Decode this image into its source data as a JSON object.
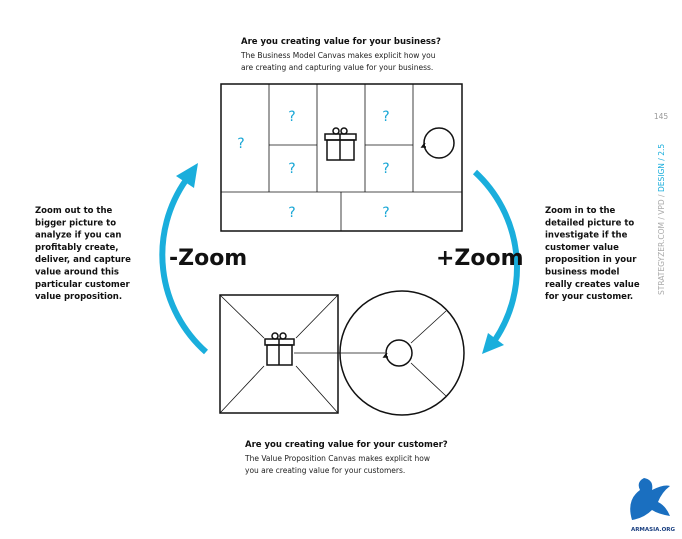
{
  "top": {
    "title": "Are you creating value for your business?",
    "lines": [
      "The Business Model Canvas makes explicit how you",
      "are creating and capturing value for your business."
    ]
  },
  "left": {
    "lines": [
      "Zoom out to the",
      "bigger picture to",
      "analyze if you can",
      "profitably create,",
      "deliver, and capture",
      "value around this",
      "particular customer",
      "value proposition."
    ]
  },
  "right": {
    "lines": [
      "Zoom in to the",
      "detailed picture to",
      "investigate if the",
      "customer value",
      "proposition in your",
      "business model",
      "really creates value",
      "for your customer."
    ]
  },
  "zoom_out": "-Zoom",
  "zoom_in": "+Zoom",
  "bottom": {
    "title": "Are you creating value for your customer?",
    "lines": [
      "The Value Proposition Canvas makes explicit how",
      "you are creating value for your customers."
    ]
  },
  "canvas": {
    "question_marks": [
      "?",
      "?",
      "?",
      "?",
      "?",
      "?",
      "?"
    ]
  },
  "side": {
    "page": "145",
    "path": "STRATEGYZER.COM / VPD / ",
    "section": "DESIGN / 2.5"
  },
  "logo": "ARMASIA.ORG"
}
